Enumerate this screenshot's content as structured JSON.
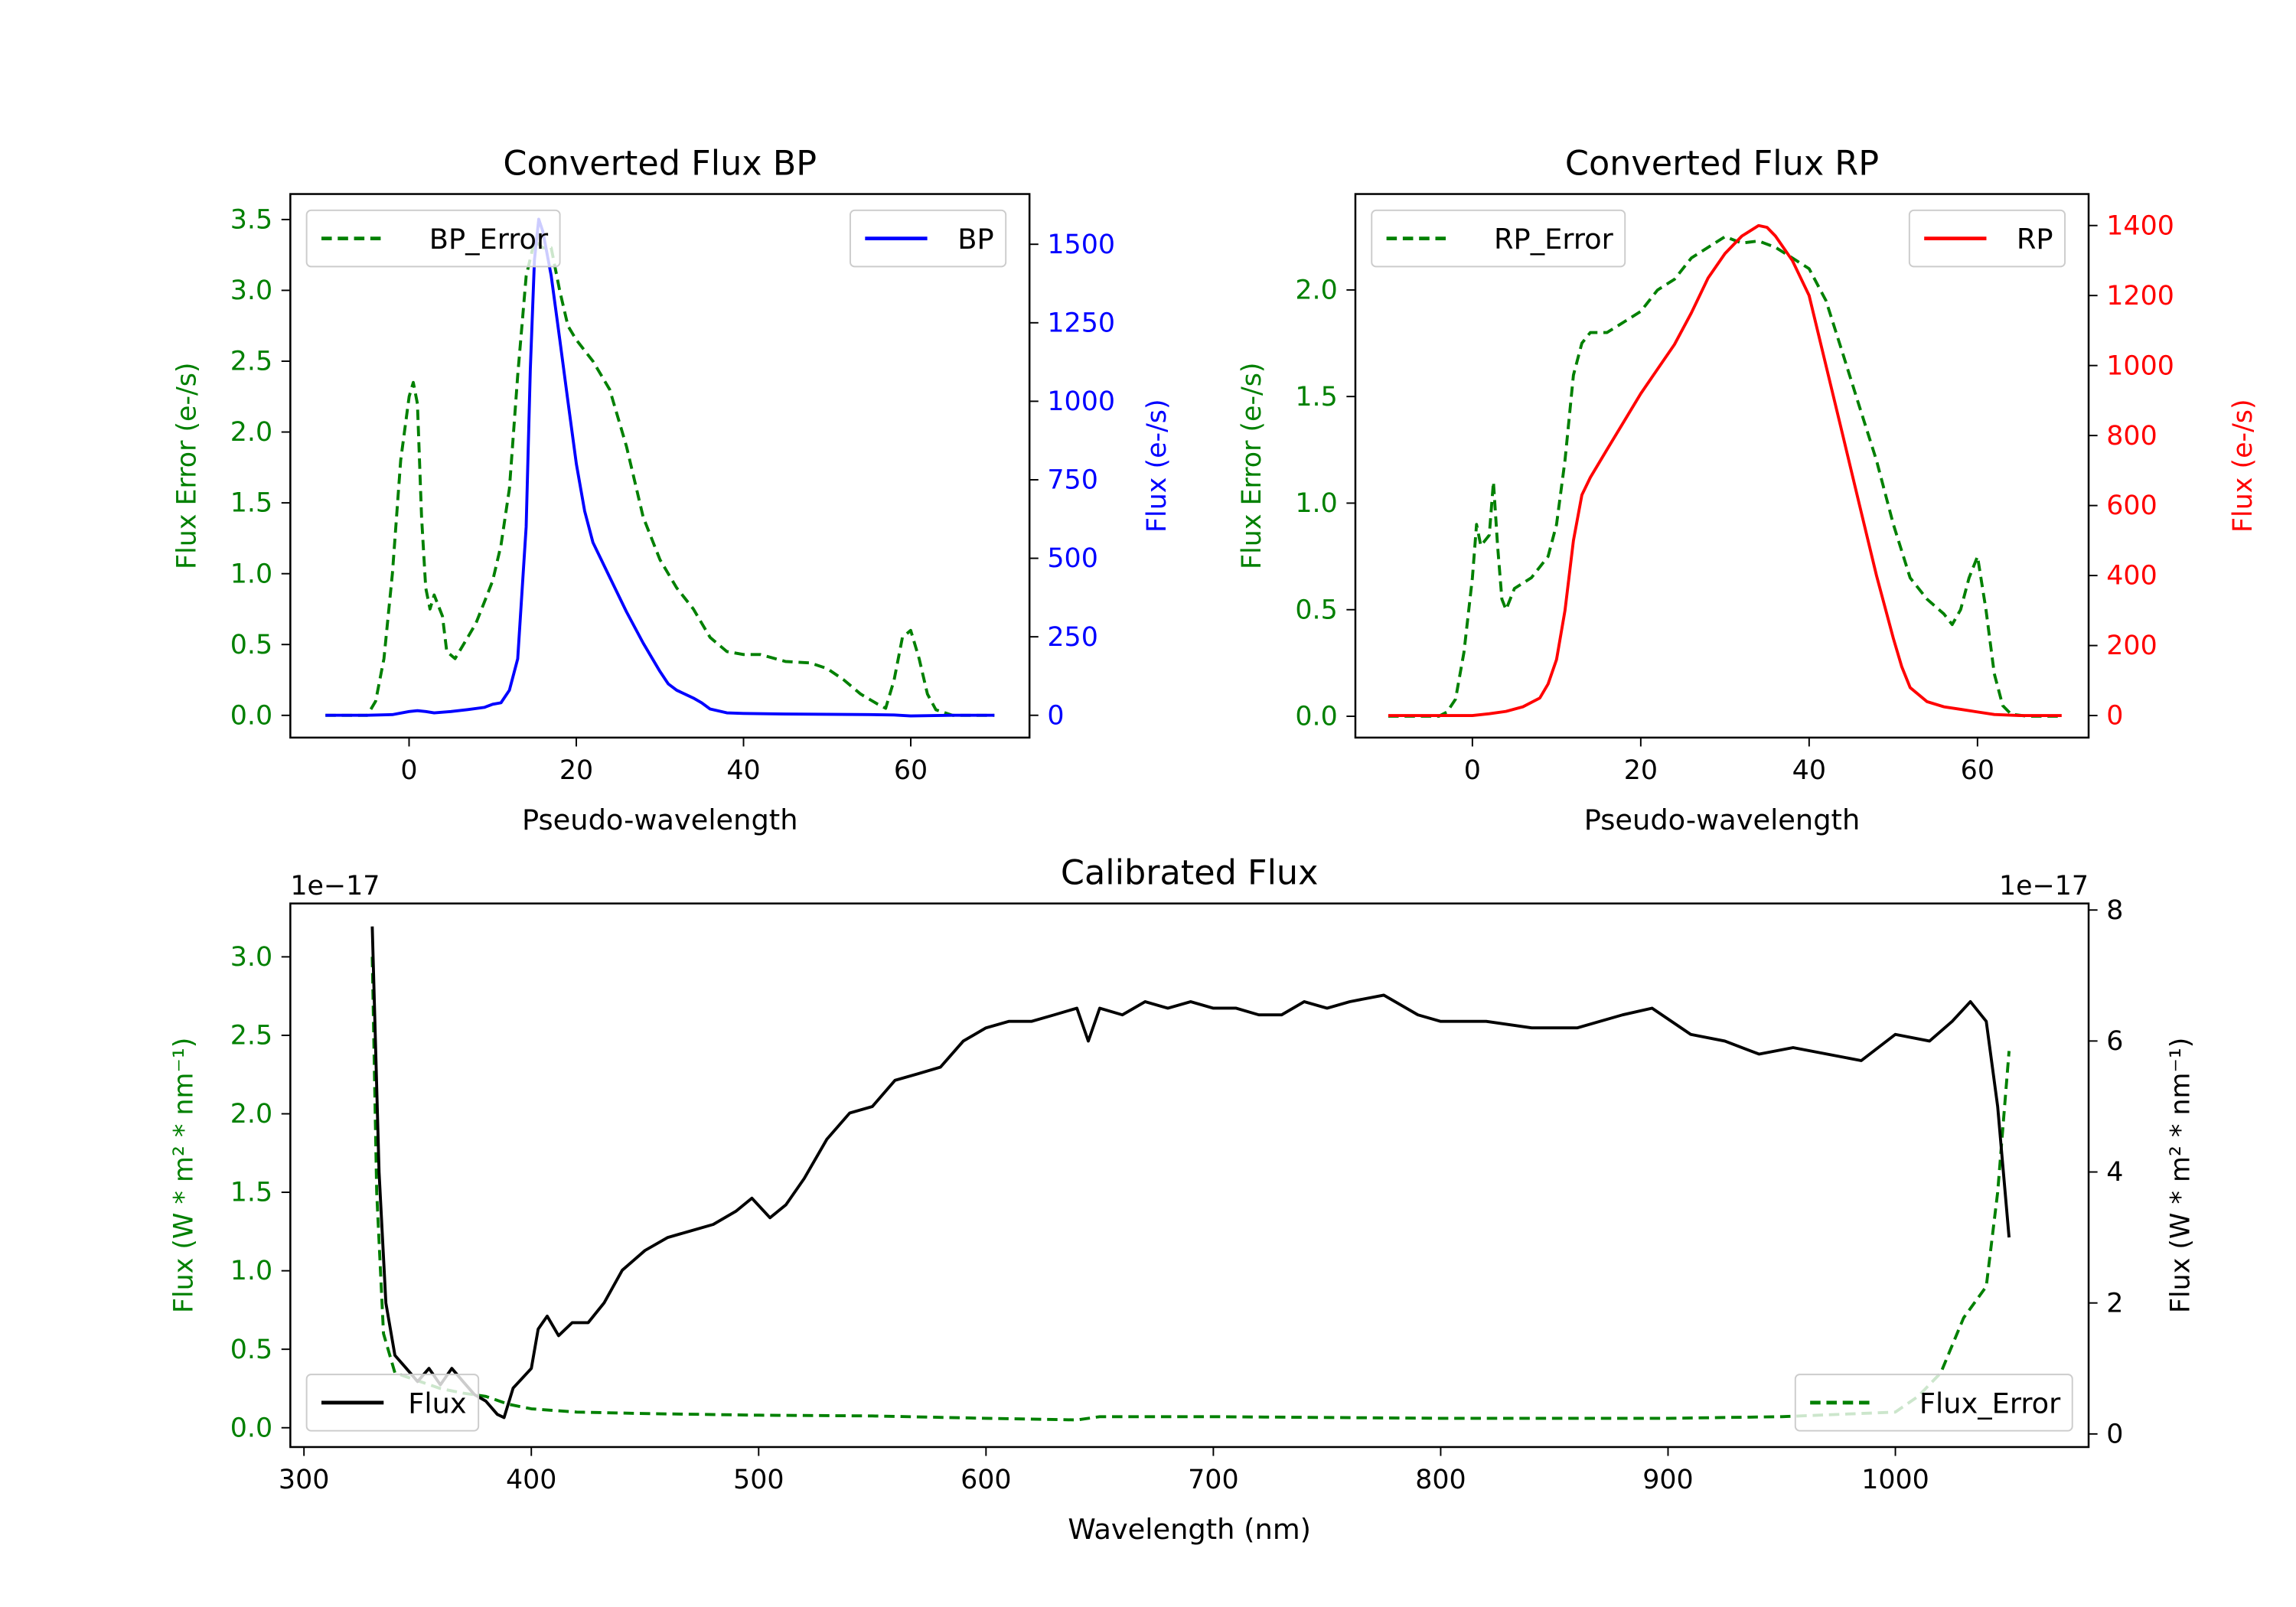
{
  "chart_data": [
    {
      "type": "line",
      "title": "Converted Flux BP",
      "xlabel": "Pseudo-wavelength",
      "ylabel_left": "Flux Error (e-/s)",
      "ylabel_right": "Flux (e-/s)",
      "xlim": [
        -14.2,
        74.2
      ],
      "ylim_left": [
        -0.157,
        3.68
      ],
      "ylim_right": [
        -71,
        1660
      ],
      "xticks": [
        0,
        20,
        40,
        60
      ],
      "yticks_left": [
        "0.0",
        "0.5",
        "1.0",
        "1.5",
        "2.0",
        "2.5",
        "3.0",
        "3.5"
      ],
      "yticks_right": [
        "0",
        "250",
        "500",
        "750",
        "1000",
        "1250",
        "1500"
      ],
      "left_color": "#008000",
      "right_color": "#0000ff",
      "legend_left": "BP_Error",
      "legend_right": "BP",
      "legend_placement": [
        "top-left",
        "top-right"
      ],
      "series": [
        {
          "name": "BP_Error",
          "axis": "left",
          "style": "dashed",
          "color": "#008000",
          "x": [
            -10,
            -5,
            -4,
            -3,
            -2,
            -1,
            0,
            0.5,
            1,
            1.5,
            2,
            2.5,
            3,
            4,
            4.5,
            5.5,
            7,
            8,
            9,
            10,
            11,
            12,
            13,
            14,
            15,
            16,
            17,
            18,
            19,
            20,
            22,
            24,
            26,
            28,
            30,
            32,
            34,
            36,
            38,
            40,
            42,
            45,
            48,
            50,
            52,
            54,
            56,
            57,
            58,
            59,
            60,
            61,
            62,
            63,
            65,
            70
          ],
          "y": [
            0,
            0,
            0.1,
            0.4,
            1.0,
            1.8,
            2.25,
            2.35,
            2.2,
            1.4,
            0.9,
            0.75,
            0.85,
            0.7,
            0.45,
            0.4,
            0.55,
            0.65,
            0.8,
            0.95,
            1.2,
            1.6,
            2.4,
            3.1,
            3.35,
            3.3,
            3.3,
            3.0,
            2.75,
            2.65,
            2.5,
            2.3,
            1.9,
            1.4,
            1.1,
            0.9,
            0.75,
            0.55,
            0.45,
            0.43,
            0.43,
            0.38,
            0.37,
            0.33,
            0.25,
            0.15,
            0.08,
            0.05,
            0.25,
            0.55,
            0.6,
            0.4,
            0.15,
            0.04,
            0,
            0
          ]
        },
        {
          "name": "BP",
          "axis": "right",
          "style": "solid",
          "color": "#0000ff",
          "x": [
            -10,
            -5,
            -2,
            0,
            1,
            2,
            3,
            5,
            7,
            9,
            10,
            11,
            12,
            13,
            14,
            14.5,
            15,
            15.5,
            16,
            17,
            18,
            19,
            20,
            21,
            22,
            24,
            26,
            28,
            30,
            31,
            32,
            34,
            35,
            36,
            38,
            40,
            45,
            50,
            55,
            58,
            60,
            65,
            70
          ],
          "y": [
            0,
            0,
            2,
            12,
            15,
            12,
            8,
            12,
            18,
            25,
            35,
            40,
            80,
            180,
            600,
            1100,
            1450,
            1580,
            1540,
            1400,
            1200,
            1000,
            800,
            650,
            550,
            440,
            330,
            230,
            140,
            100,
            80,
            55,
            40,
            20,
            8,
            6,
            4,
            3,
            2,
            1,
            -2,
            0,
            0
          ]
        }
      ]
    },
    {
      "type": "line",
      "title": "Converted Flux RP",
      "xlabel": "Pseudo-wavelength",
      "ylabel_left": "Flux Error (e-/s)",
      "ylabel_right": "Flux (e-/s)",
      "xlim": [
        -13.9,
        73.2
      ],
      "ylim_left": [
        -0.1,
        2.45
      ],
      "ylim_right": [
        -63,
        1490
      ],
      "xticks": [
        0,
        20,
        40,
        60
      ],
      "yticks_left": [
        "0.0",
        "0.5",
        "1.0",
        "1.5",
        "2.0"
      ],
      "yticks_right": [
        "0",
        "200",
        "400",
        "600",
        "800",
        "1000",
        "1200",
        "1400"
      ],
      "left_color": "#008000",
      "right_color": "#ff0000",
      "legend_left": "RP_Error",
      "legend_right": "RP",
      "legend_placement": [
        "top-left",
        "top-right"
      ],
      "series": [
        {
          "name": "RP_Error",
          "axis": "left",
          "style": "dashed",
          "color": "#008000",
          "x": [
            -10,
            -4,
            -3,
            -2,
            -1,
            0,
            0.5,
            1,
            2,
            2.5,
            3,
            3.5,
            4,
            5,
            7,
            9,
            10,
            11,
            12,
            13,
            14,
            16,
            18,
            20,
            22,
            24,
            26,
            28,
            30,
            32,
            34,
            36,
            38,
            40,
            42,
            44,
            46,
            48,
            50,
            52,
            54,
            56,
            57,
            58,
            59,
            60,
            61,
            62,
            63,
            64,
            66,
            70
          ],
          "y": [
            0,
            0,
            0.02,
            0.08,
            0.3,
            0.65,
            0.9,
            0.8,
            0.85,
            1.1,
            0.8,
            0.55,
            0.5,
            0.6,
            0.65,
            0.75,
            0.9,
            1.2,
            1.6,
            1.75,
            1.8,
            1.8,
            1.85,
            1.9,
            2.0,
            2.05,
            2.15,
            2.2,
            2.25,
            2.22,
            2.23,
            2.2,
            2.15,
            2.1,
            1.95,
            1.7,
            1.45,
            1.2,
            0.9,
            0.65,
            0.55,
            0.48,
            0.43,
            0.5,
            0.65,
            0.75,
            0.5,
            0.2,
            0.05,
            0.01,
            0,
            0
          ]
        },
        {
          "name": "RP",
          "axis": "right",
          "style": "solid",
          "color": "#ff0000",
          "x": [
            -10,
            0,
            2,
            4,
            6,
            8,
            9,
            10,
            11,
            12,
            13,
            14,
            16,
            18,
            20,
            22,
            24,
            26,
            28,
            30,
            32,
            34,
            35,
            36,
            38,
            40,
            42,
            44,
            46,
            48,
            50,
            51,
            52,
            54,
            56,
            58,
            60,
            62,
            65,
            70
          ],
          "y": [
            0,
            0,
            5,
            12,
            25,
            50,
            90,
            160,
            300,
            500,
            630,
            680,
            760,
            840,
            920,
            990,
            1060,
            1150,
            1250,
            1320,
            1370,
            1400,
            1395,
            1370,
            1300,
            1200,
            1000,
            800,
            600,
            400,
            220,
            140,
            80,
            40,
            25,
            18,
            10,
            3,
            0,
            0
          ]
        }
      ]
    },
    {
      "type": "line",
      "title": "Calibrated Flux",
      "xlabel": "Wavelength (nm)",
      "ylabel_left": "Flux (W * m² * nm⁻¹)",
      "ylabel_right": "Flux (W * m² * nm⁻¹)",
      "offset_left": "1e−17",
      "offset_right": "1e−17",
      "xlim": [
        294,
        1085
      ],
      "ylim_left": [
        -0.123,
        3.34
      ],
      "ylim_right": [
        -0.2,
        8.1
      ],
      "xticks": [
        300,
        400,
        500,
        600,
        700,
        800,
        900,
        1000
      ],
      "yticks_left": [
        "0.0",
        "0.5",
        "1.0",
        "1.5",
        "2.0",
        "2.5",
        "3.0"
      ],
      "yticks_right": [
        "0",
        "2",
        "4",
        "6",
        "8"
      ],
      "left_color": "#008000",
      "right_color": "#000000",
      "legend_left": "Flux",
      "legend_right": "Flux_Error",
      "legend_placement": [
        "bottom-left",
        "bottom-right"
      ],
      "series": [
        {
          "name": "Flux_Error",
          "axis": "left",
          "style": "dashed",
          "color": "#008000",
          "x": [
            330,
            332,
            335,
            340,
            350,
            360,
            370,
            380,
            390,
            400,
            420,
            450,
            500,
            550,
            600,
            640,
            650,
            700,
            800,
            900,
            950,
            1000,
            1010,
            1020,
            1030,
            1040,
            1045,
            1050
          ],
          "y": [
            3.0,
            1.5,
            0.6,
            0.35,
            0.3,
            0.25,
            0.22,
            0.2,
            0.15,
            0.12,
            0.1,
            0.09,
            0.08,
            0.075,
            0.06,
            0.05,
            0.07,
            0.07,
            0.06,
            0.06,
            0.07,
            0.1,
            0.2,
            0.35,
            0.7,
            0.9,
            1.5,
            2.4
          ]
        },
        {
          "name": "Flux",
          "axis": "right",
          "style": "solid",
          "color": "#000000",
          "x": [
            330,
            333,
            336,
            340,
            345,
            350,
            355,
            360,
            365,
            370,
            375,
            380,
            385,
            388,
            392,
            396,
            400,
            403,
            407,
            412,
            418,
            425,
            432,
            440,
            450,
            460,
            470,
            480,
            490,
            497,
            505,
            512,
            520,
            530,
            540,
            550,
            560,
            570,
            580,
            590,
            600,
            610,
            620,
            630,
            640,
            645,
            650,
            660,
            670,
            680,
            690,
            700,
            710,
            720,
            730,
            740,
            750,
            760,
            775,
            790,
            800,
            820,
            840,
            860,
            880,
            893,
            910,
            925,
            940,
            955,
            970,
            985,
            1000,
            1015,
            1025,
            1033,
            1040,
            1045,
            1050
          ],
          "y": [
            7.75,
            4,
            2,
            1.2,
            1.0,
            0.8,
            1.0,
            0.75,
            1.0,
            0.8,
            0.6,
            0.5,
            0.3,
            0.25,
            0.7,
            0.85,
            1.0,
            1.6,
            1.8,
            1.5,
            1.7,
            1.7,
            2.0,
            2.5,
            2.8,
            3.0,
            3.1,
            3.2,
            3.4,
            3.6,
            3.3,
            3.5,
            3.9,
            4.5,
            4.9,
            5.0,
            5.4,
            5.5,
            5.6,
            6.0,
            6.2,
            6.3,
            6.3,
            6.4,
            6.5,
            6.0,
            6.5,
            6.4,
            6.6,
            6.5,
            6.6,
            6.5,
            6.5,
            6.4,
            6.4,
            6.6,
            6.5,
            6.6,
            6.7,
            6.4,
            6.3,
            6.3,
            6.2,
            6.2,
            6.4,
            6.5,
            6.1,
            6.0,
            5.8,
            5.9,
            5.8,
            5.7,
            6.1,
            6.0,
            6.3,
            6.6,
            6.3,
            5.0,
            3.0
          ]
        }
      ]
    }
  ]
}
